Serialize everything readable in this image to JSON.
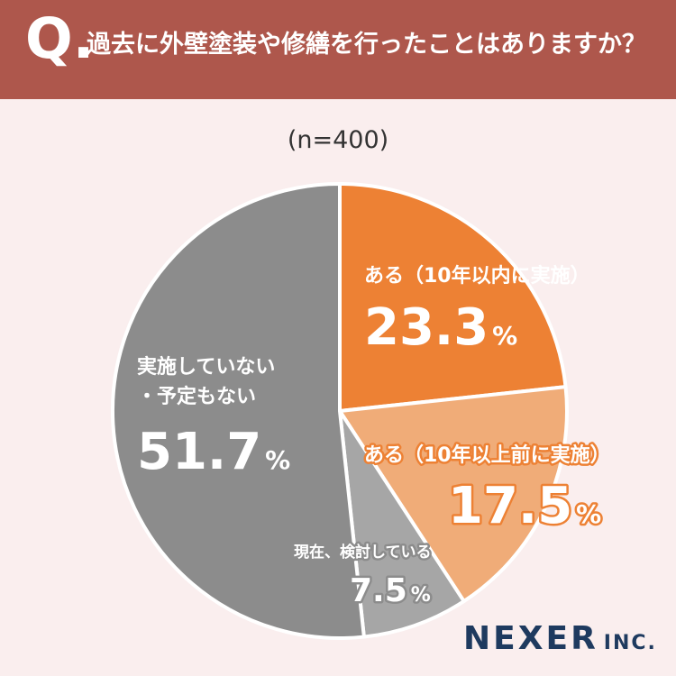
{
  "header": {
    "q_mark": "Q.",
    "question": "過去に外壁塗装や修繕を行ったことはありますか？"
  },
  "sample": "(n=400)",
  "brand": {
    "name": "NEXER",
    "suffix": "INC."
  },
  "colors": {
    "header_bg": "#ae574c",
    "page_bg": "#faeeee",
    "slice_1": "#ed8134",
    "slice_2": "#f0ac78",
    "slice_3": "#a6a6a6",
    "slice_4": "#8c8c8c"
  },
  "chart_data": {
    "type": "pie",
    "title": "過去に外壁塗装や修繕を行ったことはありますか？",
    "subtitle": "(n=400)",
    "unit": "%",
    "slices": [
      {
        "label": "ある（10年以内に実施）",
        "value": 23.3,
        "value_label": "23.3",
        "color": "#ed8134"
      },
      {
        "label": "ある（10年以上前に実施）",
        "value": 17.5,
        "value_label": "17.5",
        "color": "#f0ac78"
      },
      {
        "label": "現在、検討している",
        "value": 7.5,
        "value_label": "7.5",
        "color": "#a6a6a6"
      },
      {
        "label": "実施していない・予定もない",
        "value": 51.7,
        "value_label": "51.7",
        "color": "#8c8c8c"
      }
    ]
  }
}
